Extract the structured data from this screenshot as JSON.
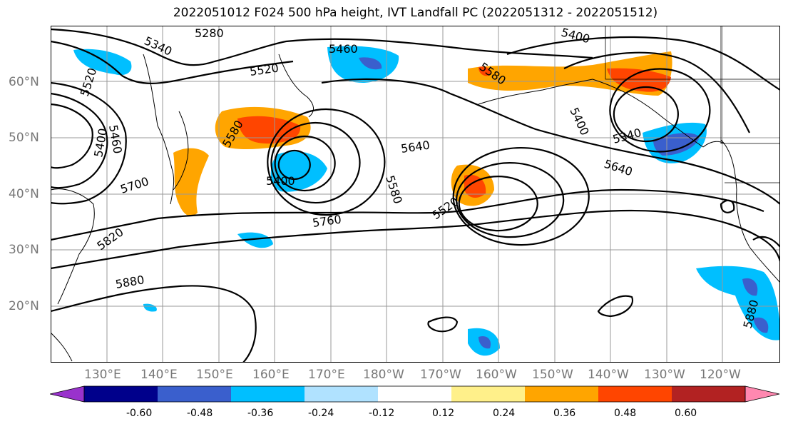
{
  "title": "2022051012 F024 500 hPa height, IVT Landfall PC (2022051312 - 2022051512)",
  "map": {
    "lat_labels": [
      "60°N",
      "50°N",
      "40°N",
      "30°N",
      "20°N"
    ],
    "lon_labels": [
      "130°E",
      "140°E",
      "150°E",
      "160°E",
      "170°E",
      "180°W",
      "170°W",
      "160°W",
      "150°W",
      "140°W",
      "130°W",
      "120°W"
    ],
    "contour_labels": [
      "5280",
      "5340",
      "5400",
      "5460",
      "5520",
      "5580",
      "5640",
      "5700",
      "5760",
      "5820",
      "5880"
    ]
  },
  "colorbar": {
    "ticks": [
      "-0.60",
      "-0.48",
      "-0.36",
      "-0.24",
      "-0.12",
      "0.12",
      "0.24",
      "0.36",
      "0.48",
      "0.60"
    ],
    "colors": [
      "#9932cc",
      "#00008b",
      "#3a5fcd",
      "#00bfff",
      "#b0e2ff",
      "#ffffff",
      "#fff08a",
      "#ffa500",
      "#ff4500",
      "#b22222",
      "#ff88b0"
    ]
  }
}
